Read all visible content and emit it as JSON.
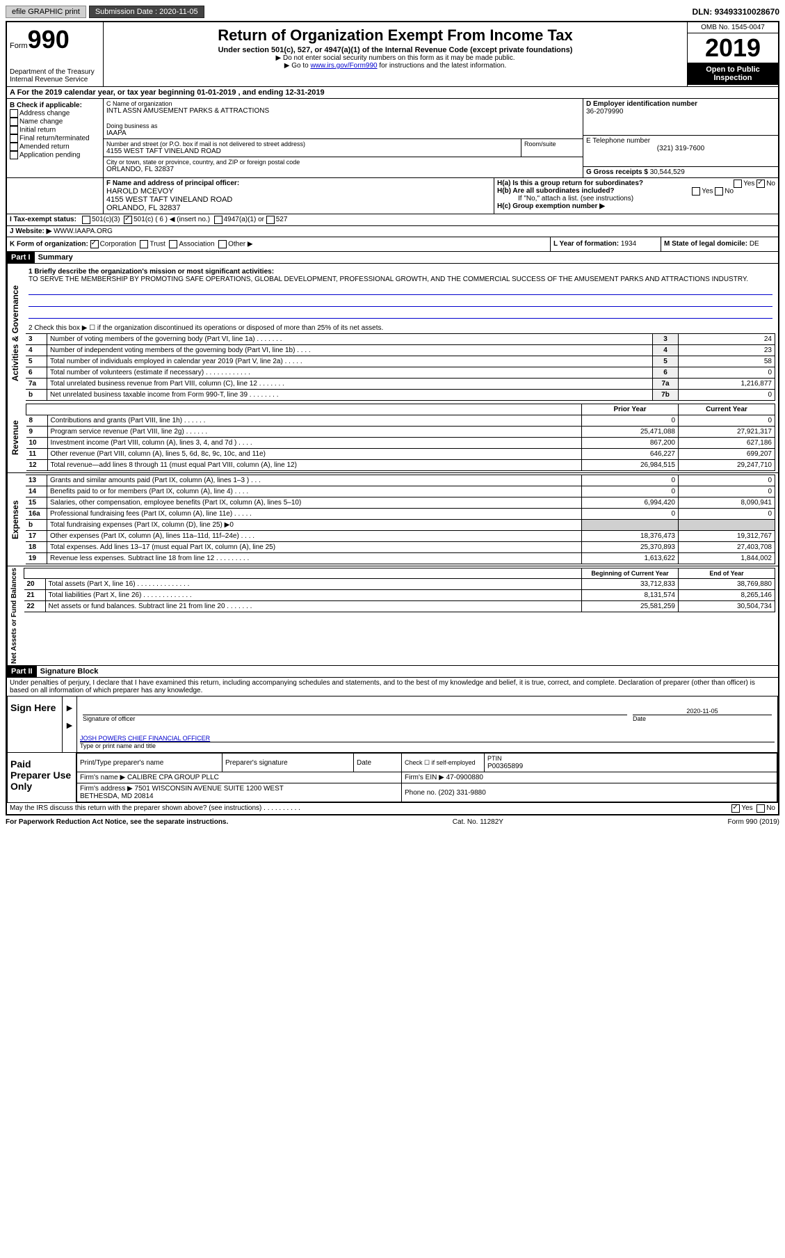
{
  "topbar": {
    "efile": "efile GRAPHIC print",
    "submission_label": "Submission Date :",
    "submission_date": "2020-11-05",
    "dln_label": "DLN:",
    "dln": "93493310028670"
  },
  "header": {
    "form_label": "Form",
    "form_num": "990",
    "dept": "Department of the Treasury\nInternal Revenue Service",
    "title": "Return of Organization Exempt From Income Tax",
    "subtitle": "Under section 501(c), 527, or 4947(a)(1) of the Internal Revenue Code (except private foundations)",
    "note1": "▶ Do not enter social security numbers on this form as it may be made public.",
    "note2_pre": "▶ Go to ",
    "note2_link": "www.irs.gov/Form990",
    "note2_post": " for instructions and the latest information.",
    "omb": "OMB No. 1545-0047",
    "year": "2019",
    "inspect": "Open to Public Inspection"
  },
  "tax_year": "A For the 2019 calendar year, or tax year beginning 01-01-2019   , and ending 12-31-2019",
  "b": {
    "label": "B Check if applicable:",
    "items": [
      "Address change",
      "Name change",
      "Initial return",
      "Final return/terminated",
      "Amended return",
      "Application pending"
    ]
  },
  "c": {
    "name_label": "C Name of organization",
    "name": "INTL ASSN AMUSEMENT PARKS & ATTRACTIONS",
    "dba_label": "Doing business as",
    "dba": "IAAPA",
    "addr_label": "Number and street (or P.O. box if mail is not delivered to street address)",
    "room_label": "Room/suite",
    "addr": "4155 WEST TAFT VINELAND ROAD",
    "city_label": "City or town, state or province, country, and ZIP or foreign postal code",
    "city": "ORLANDO, FL  32837"
  },
  "d": {
    "label": "D Employer identification number",
    "val": "36-2079990"
  },
  "e": {
    "label": "E Telephone number",
    "val": "(321) 319-7600"
  },
  "g": {
    "label": "G Gross receipts $",
    "val": "30,544,529"
  },
  "f": {
    "label": "F Name and address of principal officer:",
    "name": "HAROLD MCEVOY",
    "addr": "4155 WEST TAFT VINELAND ROAD\nORLANDO, FL  32837"
  },
  "h": {
    "a": "H(a)  Is this a group return for subordinates?",
    "a_yes": "Yes",
    "a_no": "No",
    "b": "H(b)  Are all subordinates included?",
    "b_note": "If \"No,\" attach a list. (see instructions)",
    "c": "H(c)  Group exemption number ▶"
  },
  "tax_exempt": {
    "label": "I  Tax-exempt status:",
    "opts": [
      "501(c)(3)",
      "501(c) ( 6 ) ◀ (insert no.)",
      "4947(a)(1) or",
      "527"
    ]
  },
  "website": {
    "label": "J  Website: ▶",
    "val": "WWW.IAAPA.ORG"
  },
  "k": {
    "label": "K Form of organization:",
    "opts": [
      "Corporation",
      "Trust",
      "Association",
      "Other ▶"
    ]
  },
  "l": {
    "label": "L Year of formation:",
    "val": "1934"
  },
  "m": {
    "label": "M State of legal domicile:",
    "val": "DE"
  },
  "part1": {
    "header": "Part I",
    "title": "Summary",
    "q1": "1  Briefly describe the organization's mission or most significant activities:",
    "mission": "TO SERVE THE MEMBERSHIP BY PROMOTING SAFE OPERATIONS, GLOBAL DEVELOPMENT, PROFESSIONAL GROWTH, AND THE COMMERCIAL SUCCESS OF THE AMUSEMENT PARKS AND ATTRACTIONS INDUSTRY.",
    "q2": "2   Check this box ▶ ☐  if the organization discontinued its operations or disposed of more than 25% of its net assets.",
    "activities_label": "Activities & Governance",
    "revenue_label": "Revenue",
    "expenses_label": "Expenses",
    "netassets_label": "Net Assets or Fund Balances",
    "prior_year": "Prior Year",
    "current_year": "Current Year",
    "begin_year": "Beginning of Current Year",
    "end_year": "End of Year",
    "rows_gov": [
      {
        "n": "3",
        "t": "Number of voting members of the governing body (Part VI, line 1a)  .  .  .  .  .  .  .",
        "box": "3",
        "v": "24"
      },
      {
        "n": "4",
        "t": "Number of independent voting members of the governing body (Part VI, line 1b)  .  .  .  .",
        "box": "4",
        "v": "23"
      },
      {
        "n": "5",
        "t": "Total number of individuals employed in calendar year 2019 (Part V, line 2a)  .  .  .  .  .",
        "box": "5",
        "v": "58"
      },
      {
        "n": "6",
        "t": "Total number of volunteers (estimate if necessary)   .  .  .  .  .  .  .  .  .  .  .  .",
        "box": "6",
        "v": "0"
      },
      {
        "n": "7a",
        "t": "Total unrelated business revenue from Part VIII, column (C), line 12  .  .  .  .  .  .  .",
        "box": "7a",
        "v": "1,216,877"
      },
      {
        "n": "b",
        "t": "Net unrelated business taxable income from Form 990-T, line 39  .  .  .  .  .  .  .  .",
        "box": "7b",
        "v": "0"
      }
    ],
    "rows_rev": [
      {
        "n": "8",
        "t": "Contributions and grants (Part VIII, line 1h)  .  .  .  .  .  .",
        "p": "0",
        "c": "0"
      },
      {
        "n": "9",
        "t": "Program service revenue (Part VIII, line 2g)   .  .  .  .  .  .",
        "p": "25,471,088",
        "c": "27,921,317"
      },
      {
        "n": "10",
        "t": "Investment income (Part VIII, column (A), lines 3, 4, and 7d )   .  .  .  .",
        "p": "867,200",
        "c": "627,186"
      },
      {
        "n": "11",
        "t": "Other revenue (Part VIII, column (A), lines 5, 6d, 8c, 9c, 10c, and 11e)",
        "p": "646,227",
        "c": "699,207"
      },
      {
        "n": "12",
        "t": "Total revenue—add lines 8 through 11 (must equal Part VIII, column (A), line 12)",
        "p": "26,984,515",
        "c": "29,247,710"
      }
    ],
    "rows_exp": [
      {
        "n": "13",
        "t": "Grants and similar amounts paid (Part IX, column (A), lines 1–3 )  .  .  .",
        "p": "0",
        "c": "0"
      },
      {
        "n": "14",
        "t": "Benefits paid to or for members (Part IX, column (A), line 4)  .  .  .  .",
        "p": "0",
        "c": "0"
      },
      {
        "n": "15",
        "t": "Salaries, other compensation, employee benefits (Part IX, column (A), lines 5–10)",
        "p": "6,994,420",
        "c": "8,090,941"
      },
      {
        "n": "16a",
        "t": "Professional fundraising fees (Part IX, column (A), line 11e)  .  .  .  .  .",
        "p": "0",
        "c": "0"
      },
      {
        "n": "b",
        "t": "Total fundraising expenses (Part IX, column (D), line 25) ▶0",
        "p": "",
        "c": "",
        "shade": true
      },
      {
        "n": "17",
        "t": "Other expenses (Part IX, column (A), lines 11a–11d, 11f–24e)  .  .  .  .",
        "p": "18,376,473",
        "c": "19,312,767"
      },
      {
        "n": "18",
        "t": "Total expenses. Add lines 13–17 (must equal Part IX, column (A), line 25)",
        "p": "25,370,893",
        "c": "27,403,708"
      },
      {
        "n": "19",
        "t": "Revenue less expenses. Subtract line 18 from line 12  .  .  .  .  .  .  .  .  .",
        "p": "1,613,622",
        "c": "1,844,002"
      }
    ],
    "rows_net": [
      {
        "n": "20",
        "t": "Total assets (Part X, line 16)  .  .  .  .  .  .  .  .  .  .  .  .  .  .",
        "p": "33,712,833",
        "c": "38,769,880"
      },
      {
        "n": "21",
        "t": "Total liabilities (Part X, line 26)  .  .  .  .  .  .  .  .  .  .  .  .  .",
        "p": "8,131,574",
        "c": "8,265,146"
      },
      {
        "n": "22",
        "t": "Net assets or fund balances. Subtract line 21 from line 20  .  .  .  .  .  .  .",
        "p": "25,581,259",
        "c": "30,504,734"
      }
    ]
  },
  "part2": {
    "header": "Part II",
    "title": "Signature Block",
    "penalty": "Under penalties of perjury, I declare that I have examined this return, including accompanying schedules and statements, and to the best of my knowledge and belief, it is true, correct, and complete. Declaration of preparer (other than officer) is based on all information of which preparer has any knowledge.",
    "sign_here": "Sign Here",
    "sig_officer": "Signature of officer",
    "date": "Date",
    "date_val": "2020-11-05",
    "officer_name": "JOSH POWERS CHIEF FINANCIAL OFFICER",
    "type_name": "Type or print name and title",
    "paid_prep": "Paid Preparer Use Only",
    "prep_name_label": "Print/Type preparer's name",
    "prep_sig_label": "Preparer's signature",
    "check_self": "Check ☐ if self-employed",
    "ptin_label": "PTIN",
    "ptin": "P00365899",
    "firm_name_label": "Firm's name    ▶",
    "firm_name": "CALIBRE CPA GROUP PLLC",
    "firm_ein_label": "Firm's EIN ▶",
    "firm_ein": "47-0900880",
    "firm_addr_label": "Firm's address ▶",
    "firm_addr": "7501 WISCONSIN AVENUE SUITE 1200 WEST\nBETHESDA, MD  20814",
    "phone_label": "Phone no.",
    "phone": "(202) 331-9880",
    "discuss": "May the IRS discuss this return with the preparer shown above? (see instructions)  .  .  .  .  .  .  .  .  .  .",
    "yes": "Yes",
    "no": "No"
  },
  "footer": {
    "paperwork": "For Paperwork Reduction Act Notice, see the separate instructions.",
    "cat": "Cat. No. 11282Y",
    "form": "Form 990 (2019)"
  }
}
